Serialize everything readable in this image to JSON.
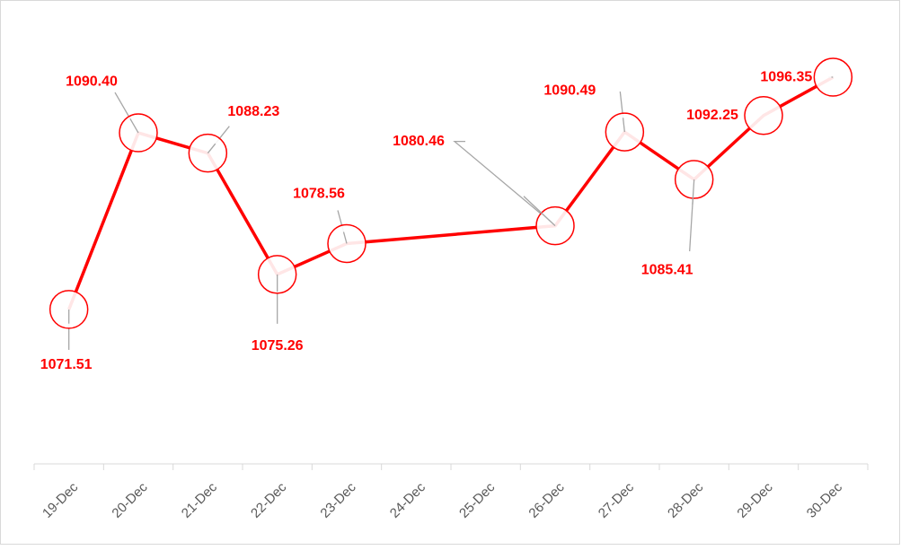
{
  "chart_data": {
    "type": "line",
    "categories": [
      "19-Dec",
      "20-Dec",
      "21-Dec",
      "22-Dec",
      "23-Dec",
      "24-Dec",
      "25-Dec",
      "26-Dec",
      "27-Dec",
      "28-Dec",
      "29-Dec",
      "30-Dec"
    ],
    "x": [
      "19-Dec",
      "20-Dec",
      "21-Dec",
      "22-Dec",
      "23-Dec",
      "26-Dec",
      "27-Dec",
      "28-Dec",
      "29-Dec",
      "30-Dec"
    ],
    "values": [
      1071.51,
      1090.4,
      1088.23,
      1075.26,
      1078.56,
      1080.46,
      1090.49,
      1085.41,
      1092.25,
      1096.35
    ],
    "value_labels": [
      "1071.51",
      "1090.40",
      "1088.23",
      "1075.26",
      "1078.56",
      "1080.46",
      "1090.49",
      "1085.41",
      "1092.25",
      "1096.35"
    ],
    "color": "#ff0000",
    "ylim": [
      1055,
      1100
    ]
  }
}
